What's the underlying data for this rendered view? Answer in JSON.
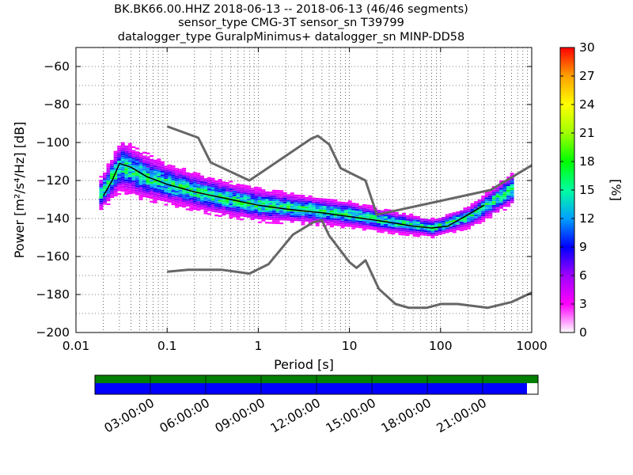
{
  "title_lines": [
    "BK.BK66.00.HHZ   2018-06-13 -- 2018-06-13  (46/46 segments)",
    "sensor_type CMG-3T sensor_sn T39799",
    "datalogger_type GuralpMinimus+ datalogger_sn MINP-DD58"
  ],
  "colorbar": {
    "label": "[%]",
    "min": 0,
    "max": 30,
    "ticks": [
      "0",
      "3",
      "6",
      "9",
      "12",
      "15",
      "18",
      "21",
      "24",
      "27",
      "30"
    ],
    "colormap": [
      "#ffffff",
      "#ff00ff",
      "#a000ff",
      "#0000ff",
      "#00a0ff",
      "#00ffa0",
      "#00ff00",
      "#a0ff00",
      "#ffff00",
      "#ffa000",
      "#ff0000"
    ]
  },
  "chart_data": {
    "type": "heatmap",
    "title": "BK.BK66.00.HHZ   2018-06-13 -- 2018-06-13  (46/46 segments)",
    "xlabel": "Period [s]",
    "ylabel": "Power [m²/s⁴/Hz] [dB]",
    "xscale": "log",
    "xlim": [
      0.01,
      1000
    ],
    "ylim": [
      -200,
      -50
    ],
    "x_ticks": [
      "0.01",
      "0.1",
      "1",
      "10",
      "100",
      "1000"
    ],
    "y_ticks": [
      "−60",
      "−80",
      "−100",
      "−120",
      "−140",
      "−160",
      "−180",
      "−200"
    ],
    "y_tick_values": [
      -60,
      -80,
      -100,
      -120,
      -140,
      -160,
      -180,
      -200
    ],
    "series": [
      {
        "name": "",
        "role": "model-high",
        "color": "#666666",
        "x": [
          0.1,
          0.22,
          0.3,
          0.8,
          3.8,
          4.5,
          6,
          8,
          15,
          20,
          354,
          1000
        ],
        "y": [
          -91.5,
          -97.5,
          -110.5,
          -120,
          -98,
          -96.5,
          -101,
          -113.5,
          -120,
          -138,
          -125,
          -112
        ]
      },
      {
        "name": "",
        "role": "model-low",
        "color": "#666666",
        "x": [
          0.1,
          0.17,
          0.4,
          0.8,
          1.3,
          2.4,
          4,
          5,
          6,
          10,
          12,
          15,
          21,
          32,
          45,
          70,
          101,
          154,
          328,
          600,
          1000
        ],
        "y": [
          -168,
          -167,
          -167,
          -169,
          -164,
          -148.5,
          -142,
          -141,
          -149,
          -163,
          -166,
          -162,
          -177,
          -185,
          -187,
          -187,
          -185,
          -185,
          -187,
          -184,
          -179
        ]
      },
      {
        "name": "",
        "role": "mean",
        "color": "#000000",
        "x": [
          0.02,
          0.025,
          0.03,
          0.04,
          0.06,
          0.1,
          0.2,
          0.5,
          1,
          2,
          5,
          10,
          20,
          50,
          80,
          120,
          200,
          300
        ],
        "y": [
          -128,
          -120,
          -111,
          -113,
          -118,
          -122,
          -126,
          -130,
          -133,
          -135,
          -137,
          -139,
          -141,
          -144,
          -145,
          -144,
          -138,
          -133
        ]
      }
    ],
    "density": {
      "x_range": [
        0.018,
        1000
      ],
      "band": [
        {
          "x": 0.018,
          "y": -127,
          "spread": 9
        },
        {
          "x": 0.03,
          "y": -112,
          "spread": 14
        },
        {
          "x": 0.05,
          "y": -117,
          "spread": 13
        },
        {
          "x": 0.1,
          "y": -122,
          "spread": 11
        },
        {
          "x": 0.3,
          "y": -128,
          "spread": 10
        },
        {
          "x": 1,
          "y": -133,
          "spread": 9
        },
        {
          "x": 3,
          "y": -135,
          "spread": 8
        },
        {
          "x": 10,
          "y": -138,
          "spread": 7
        },
        {
          "x": 30,
          "y": -142,
          "spread": 6
        },
        {
          "x": 80,
          "y": -145,
          "spread": 5
        },
        {
          "x": 200,
          "y": -139,
          "spread": 6
        },
        {
          "x": 600,
          "y": -124,
          "spread": 9
        }
      ]
    },
    "grid": true
  },
  "coverage": {
    "tick_labels": [
      "03:00:00",
      "06:00:00",
      "09:00:00",
      "12:00:00",
      "15:00:00",
      "18:00:00",
      "21:00:00"
    ],
    "data_fraction": 0.975,
    "colors": {
      "green": "#008000",
      "blue": "#0000ff"
    }
  }
}
